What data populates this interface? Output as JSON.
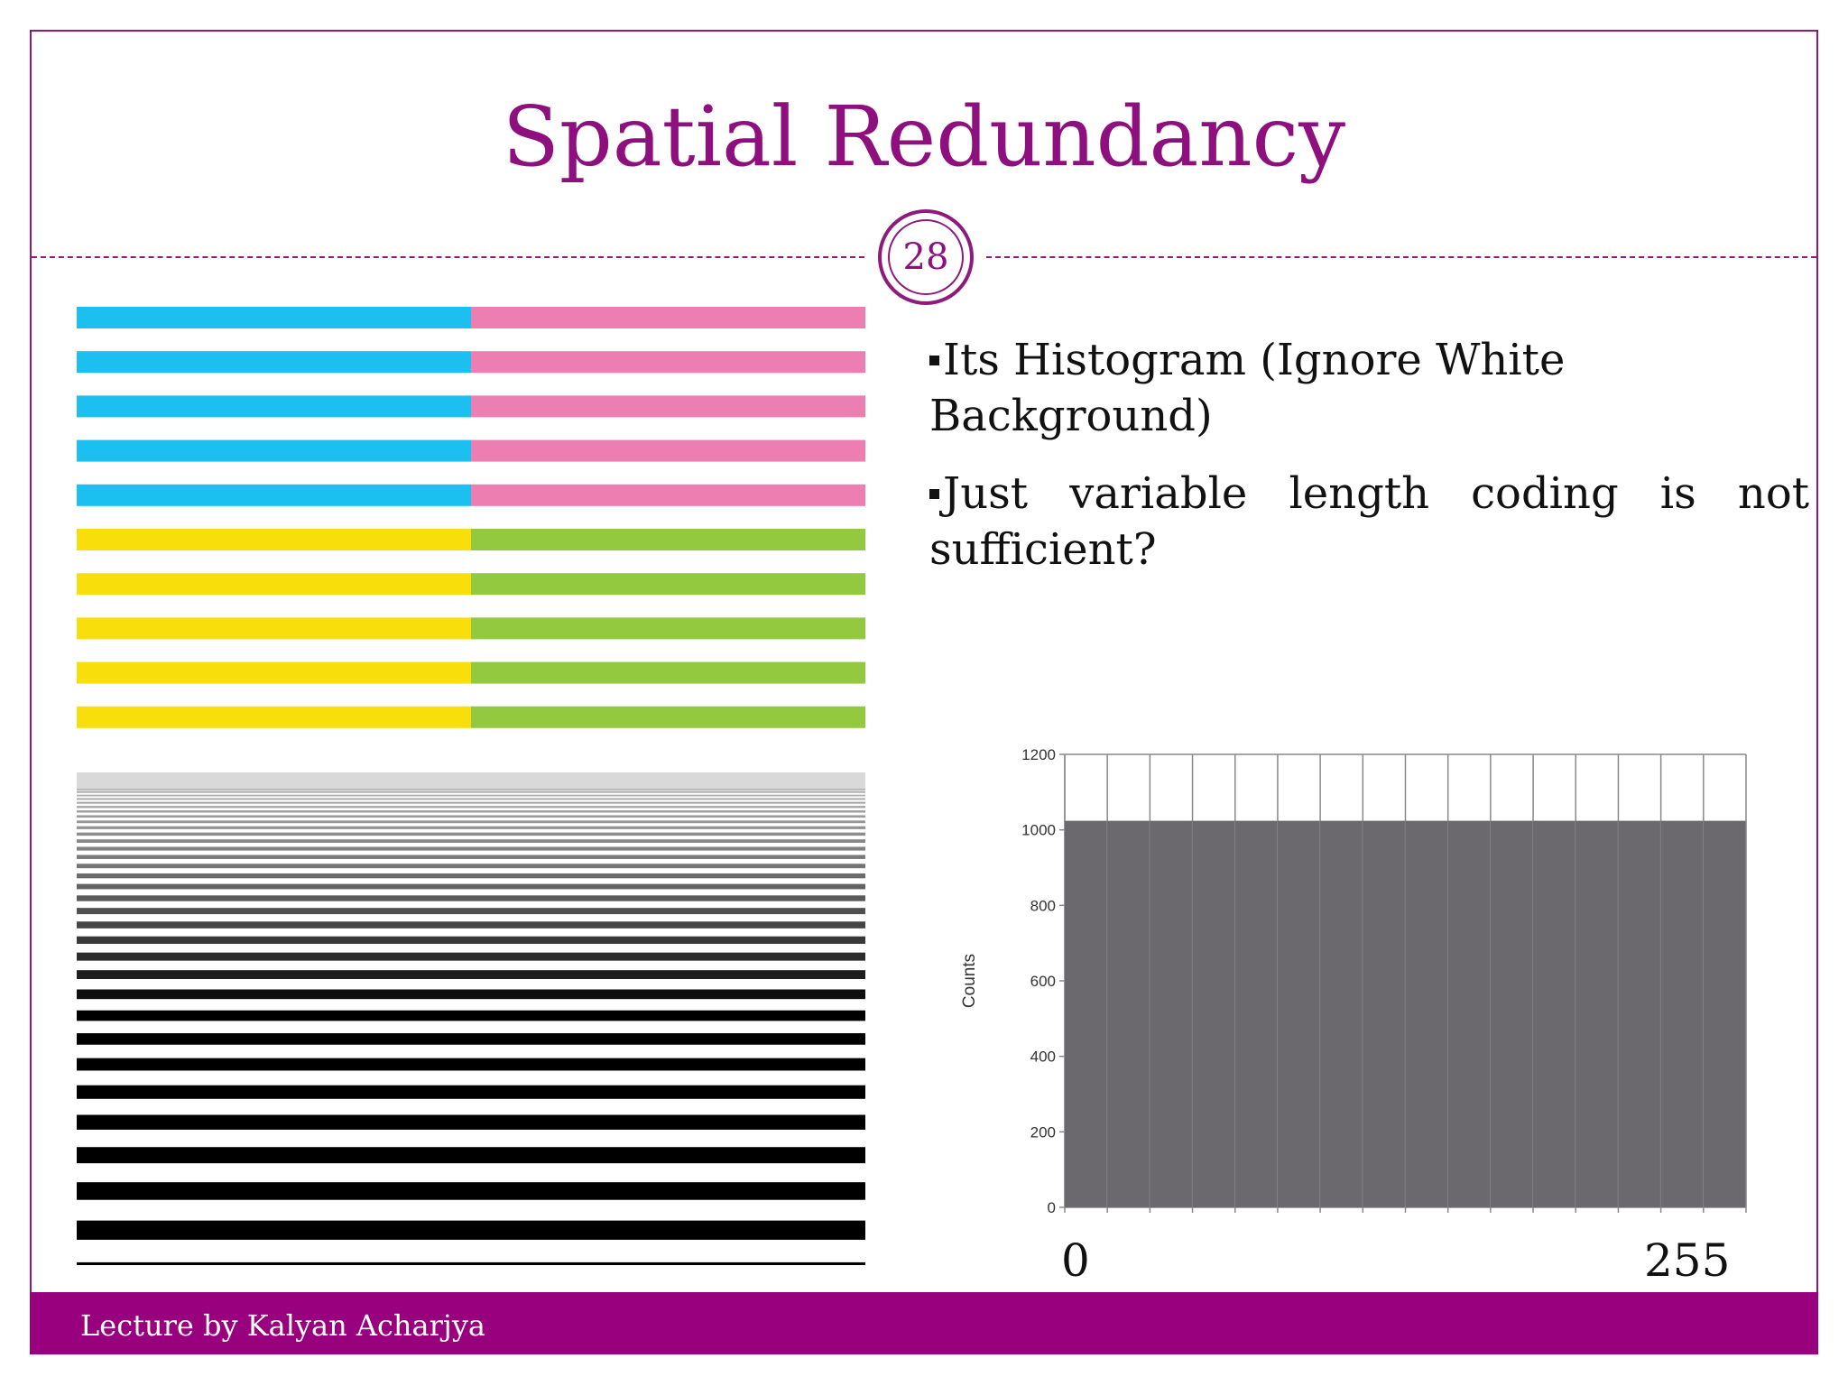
{
  "slide": {
    "title": "Spatial Redundancy",
    "page_number": "28",
    "footer": "Lecture by Kalyan Acharjya",
    "accent_color": "#8e0f7e",
    "footer_color": "#98007e"
  },
  "bullets": [
    "Its Histogram (Ignore White Background)",
    "Just variable length coding is not sufficient?"
  ],
  "color_pattern": {
    "rows_top": 5,
    "rows_bottom": 5,
    "colors": {
      "top_left": "#1cc0f0",
      "top_right": "#ec7eb2",
      "bottom_left": "#f8df0c",
      "bottom_right": "#93c93f"
    }
  },
  "chart_data": {
    "type": "bar",
    "ylabel": "Counts",
    "yticks": [
      0,
      200,
      400,
      600,
      800,
      1000,
      1200
    ],
    "ylim": [
      0,
      1200
    ],
    "bins": 16,
    "values": [
      1024,
      1024,
      1024,
      1024,
      1024,
      1024,
      1024,
      1024,
      1024,
      1024,
      1024,
      1024,
      1024,
      1024,
      1024,
      1024
    ],
    "x_start_label": "0",
    "x_end_label": "255",
    "bar_color": "#6b696d"
  }
}
